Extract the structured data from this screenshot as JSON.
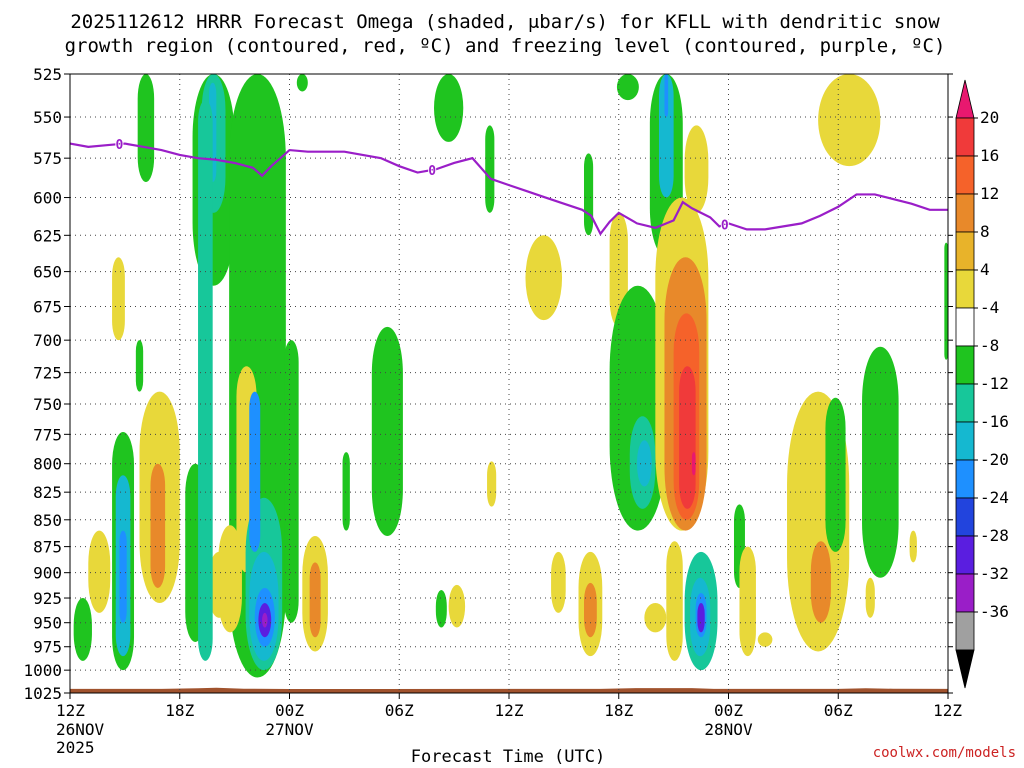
{
  "chart_data": {
    "type": "heatmap",
    "title_line1": "2025112612 HRRR Forecast Omega (shaded, μbar/s) for KFLL with dendritic snow",
    "title_line2": "growth region (contoured, red, ºC) and freezing level (contoured, purple, ºC)",
    "xlabel": "Forecast Time (UTC)",
    "ylabel": "",
    "credit": "coolwx.com/models",
    "x_hours_range": [
      0,
      48
    ],
    "y_range_hPa": [
      525,
      1025
    ],
    "y_ticks": [
      "525",
      "550",
      "575",
      "600",
      "625",
      "650",
      "675",
      "700",
      "725",
      "750",
      "775",
      "800",
      "825",
      "850",
      "875",
      "900",
      "925",
      "950",
      "975",
      "1000",
      "1025"
    ],
    "x_ticks": [
      {
        "hour": 0,
        "label": "12Z",
        "date": "26NOV",
        "year": "2025"
      },
      {
        "hour": 6,
        "label": "18Z",
        "date": "",
        "year": ""
      },
      {
        "hour": 12,
        "label": "00Z",
        "date": "27NOV",
        "year": ""
      },
      {
        "hour": 18,
        "label": "06Z",
        "date": "",
        "year": ""
      },
      {
        "hour": 24,
        "label": "12Z",
        "date": "",
        "year": ""
      },
      {
        "hour": 30,
        "label": "18Z",
        "date": "",
        "year": ""
      },
      {
        "hour": 36,
        "label": "00Z",
        "date": "28NOV",
        "year": ""
      },
      {
        "hour": 42,
        "label": "06Z",
        "date": "",
        "year": ""
      },
      {
        "hour": 48,
        "label": "12Z",
        "date": "",
        "year": ""
      }
    ],
    "colorbar": {
      "labels": [
        "20",
        "16",
        "12",
        "8",
        "4",
        "-4",
        "-8",
        "-12",
        "-16",
        "-20",
        "-24",
        "-28",
        "-32",
        "-36"
      ],
      "colors": [
        "#e8186f",
        "#f03a3a",
        "#f5622a",
        "#e8892a",
        "#e8b32a",
        "#e8d83a",
        "#ffffff",
        "#1fc41f",
        "#17c79a",
        "#15b8d0",
        "#1e90ff",
        "#2244dd",
        "#5a1ee0",
        "#9a1ec8",
        "#a0a0a0",
        "#000000"
      ]
    },
    "freezing_level": {
      "label": "0",
      "hours": [
        0,
        1,
        2,
        3,
        4,
        5,
        6,
        7,
        8,
        9,
        10,
        10.5,
        11,
        11.5,
        12,
        13,
        14,
        15,
        16,
        17,
        18,
        19,
        20,
        21,
        22,
        23,
        24,
        25,
        26,
        27,
        28,
        28.5,
        29,
        29.5,
        30,
        31,
        32,
        33,
        33.5,
        34,
        35,
        35.5,
        36,
        37,
        38,
        39,
        40,
        41,
        42,
        43,
        44,
        45,
        46,
        47,
        48
      ],
      "pressures": [
        566,
        568,
        567,
        566,
        568,
        570,
        573,
        575,
        576,
        578,
        581,
        586,
        580,
        575,
        570,
        571,
        571,
        571,
        573,
        575,
        580,
        584,
        582,
        578,
        575,
        588,
        592,
        596,
        600,
        604,
        608,
        612,
        624,
        616,
        610,
        617,
        620,
        615,
        603,
        607,
        613,
        619,
        617,
        621,
        621,
        619,
        617,
        612,
        606,
        598,
        598,
        601,
        604,
        608,
        608
      ],
      "label_hours": [
        2.7,
        19.8,
        35.8
      ]
    },
    "regions": [
      {
        "value": -6,
        "h": [
          3.7,
          4.6
        ],
        "p": [
          525,
          590
        ]
      },
      {
        "value": -6,
        "h": [
          6.7,
          9.0
        ],
        "p": [
          525,
          660
        ]
      },
      {
        "value": -10,
        "h": [
          7.2,
          8.5
        ],
        "p": [
          525,
          610
        ]
      },
      {
        "value": -14,
        "h": [
          7.6,
          8.0
        ],
        "p": [
          530,
          590
        ]
      },
      {
        "value": -6,
        "h": [
          8.7,
          11.8
        ],
        "p": [
          525,
          1008
        ]
      },
      {
        "value": -6,
        "h": [
          12.4,
          13.0
        ],
        "p": [
          525,
          535
        ]
      },
      {
        "value": -6,
        "h": [
          19.9,
          21.5
        ],
        "p": [
          525,
          565
        ]
      },
      {
        "value": -6,
        "h": [
          22.7,
          23.2
        ],
        "p": [
          555,
          610
        ]
      },
      {
        "value": -6,
        "h": [
          31.7,
          33.5
        ],
        "p": [
          525,
          640
        ]
      },
      {
        "value": -12,
        "h": [
          32.2,
          33.0
        ],
        "p": [
          525,
          600
        ]
      },
      {
        "value": -18,
        "h": [
          32.5,
          32.7
        ],
        "p": [
          525,
          550
        ]
      },
      {
        "value": -6,
        "h": [
          29.9,
          31.1
        ],
        "p": [
          525,
          540
        ]
      },
      {
        "value": 6,
        "h": [
          40.9,
          44.3
        ],
        "p": [
          525,
          580
        ]
      },
      {
        "value": 6,
        "h": [
          2.3,
          3.0
        ],
        "p": [
          640,
          700
        ]
      },
      {
        "value": -6,
        "h": [
          3.6,
          4.0
        ],
        "p": [
          700,
          740
        ]
      },
      {
        "value": -6,
        "h": [
          2.3,
          3.5
        ],
        "p": [
          773,
          1000
        ]
      },
      {
        "value": -12,
        "h": [
          2.5,
          3.3
        ],
        "p": [
          810,
          985
        ]
      },
      {
        "value": -16,
        "h": [
          2.7,
          3.1
        ],
        "p": [
          860,
          950
        ]
      },
      {
        "value": 6,
        "h": [
          1.0,
          2.2
        ],
        "p": [
          860,
          940
        ]
      },
      {
        "value": 6,
        "h": [
          3.8,
          6.0
        ],
        "p": [
          740,
          930
        ]
      },
      {
        "value": 10,
        "h": [
          4.4,
          5.2
        ],
        "p": [
          800,
          915
        ]
      },
      {
        "value": -6,
        "h": [
          0.2,
          1.2
        ],
        "p": [
          925,
          990
        ]
      },
      {
        "value": -6,
        "h": [
          6.3,
          7.4
        ],
        "p": [
          800,
          970
        ]
      },
      {
        "value": 6,
        "h": [
          7.5,
          8.8
        ],
        "p": [
          880,
          945
        ]
      },
      {
        "value": 6,
        "h": [
          9.1,
          10.2
        ],
        "p": [
          720,
          900
        ]
      },
      {
        "value": 6,
        "h": [
          8.1,
          9.4
        ],
        "p": [
          855,
          960
        ]
      },
      {
        "value": -10,
        "h": [
          9.6,
          11.6
        ],
        "p": [
          830,
          1000
        ]
      },
      {
        "value": -14,
        "h": [
          9.8,
          11.4
        ],
        "p": [
          880,
          990
        ]
      },
      {
        "value": -18,
        "h": [
          10.1,
          11.2
        ],
        "p": [
          915,
          975
        ]
      },
      {
        "value": -24,
        "h": [
          10.3,
          11.0
        ],
        "p": [
          930,
          965
        ]
      },
      {
        "value": -30,
        "h": [
          10.5,
          10.8
        ],
        "p": [
          940,
          955
        ]
      },
      {
        "value": -16,
        "h": [
          9.8,
          10.4
        ],
        "p": [
          740,
          880
        ]
      },
      {
        "value": -8,
        "h": [
          7.0,
          7.8
        ],
        "p": [
          540,
          990
        ]
      },
      {
        "value": -6,
        "h": [
          11.7,
          12.5
        ],
        "p": [
          700,
          950
        ]
      },
      {
        "value": 6,
        "h": [
          12.7,
          14.1
        ],
        "p": [
          865,
          980
        ]
      },
      {
        "value": 10,
        "h": [
          13.1,
          13.7
        ],
        "p": [
          890,
          965
        ]
      },
      {
        "value": -6,
        "h": [
          14.9,
          15.3
        ],
        "p": [
          790,
          860
        ]
      },
      {
        "value": -6,
        "h": [
          16.5,
          18.2
        ],
        "p": [
          690,
          865
        ]
      },
      {
        "value": -6,
        "h": [
          20.0,
          20.6
        ],
        "p": [
          917,
          955
        ]
      },
      {
        "value": 6,
        "h": [
          20.7,
          21.6
        ],
        "p": [
          912,
          955
        ]
      },
      {
        "value": 6,
        "h": [
          24.9,
          26.9
        ],
        "p": [
          625,
          685
        ]
      },
      {
        "value": 6,
        "h": [
          22.8,
          23.3
        ],
        "p": [
          798,
          838
        ]
      },
      {
        "value": 6,
        "h": [
          26.3,
          27.1
        ],
        "p": [
          880,
          940
        ]
      },
      {
        "value": 6,
        "h": [
          27.8,
          29.1
        ],
        "p": [
          880,
          985
        ]
      },
      {
        "value": 10,
        "h": [
          28.1,
          28.8
        ],
        "p": [
          910,
          965
        ]
      },
      {
        "value": 6,
        "h": [
          29.5,
          30.5
        ],
        "p": [
          610,
          690
        ]
      },
      {
        "value": -6,
        "h": [
          28.1,
          28.6
        ],
        "p": [
          572,
          625
        ]
      },
      {
        "value": -6,
        "h": [
          29.5,
          32.6
        ],
        "p": [
          660,
          860
        ]
      },
      {
        "value": -10,
        "h": [
          30.6,
          32.0
        ],
        "p": [
          760,
          840
        ]
      },
      {
        "value": -12,
        "h": [
          31.0,
          31.8
        ],
        "p": [
          780,
          820
        ]
      },
      {
        "value": 6,
        "h": [
          31.4,
          32.6
        ],
        "p": [
          930,
          960
        ]
      },
      {
        "value": 6,
        "h": [
          32.0,
          34.9
        ],
        "p": [
          600,
          860
        ]
      },
      {
        "value": 10,
        "h": [
          32.5,
          34.8
        ],
        "p": [
          640,
          860
        ]
      },
      {
        "value": 14,
        "h": [
          33.0,
          34.4
        ],
        "p": [
          680,
          850
        ]
      },
      {
        "value": 18,
        "h": [
          33.3,
          34.2
        ],
        "p": [
          720,
          840
        ]
      },
      {
        "value": 20,
        "h": [
          34.0,
          34.2
        ],
        "p": [
          790,
          810
        ]
      },
      {
        "value": 6,
        "h": [
          33.6,
          34.9
        ],
        "p": [
          555,
          610
        ]
      },
      {
        "value": 6,
        "h": [
          32.6,
          33.5
        ],
        "p": [
          870,
          990
        ]
      },
      {
        "value": -8,
        "h": [
          33.6,
          35.4
        ],
        "p": [
          880,
          1000
        ]
      },
      {
        "value": -12,
        "h": [
          33.9,
          35.0
        ],
        "p": [
          905,
          985
        ]
      },
      {
        "value": -18,
        "h": [
          34.2,
          34.8
        ],
        "p": [
          920,
          965
        ]
      },
      {
        "value": -26,
        "h": [
          34.3,
          34.7
        ],
        "p": [
          930,
          960
        ]
      },
      {
        "value": -6,
        "h": [
          36.3,
          36.9
        ],
        "p": [
          836,
          915
        ]
      },
      {
        "value": 6,
        "h": [
          36.6,
          37.5
        ],
        "p": [
          875,
          985
        ]
      },
      {
        "value": 6,
        "h": [
          37.6,
          38.4
        ],
        "p": [
          960,
          975
        ]
      },
      {
        "value": 6,
        "h": [
          39.2,
          42.6
        ],
        "p": [
          740,
          980
        ]
      },
      {
        "value": 10,
        "h": [
          40.5,
          41.6
        ],
        "p": [
          870,
          950
        ]
      },
      {
        "value": -6,
        "h": [
          41.3,
          42.4
        ],
        "p": [
          745,
          880
        ]
      },
      {
        "value": -6,
        "h": [
          43.3,
          45.3
        ],
        "p": [
          705,
          905
        ]
      },
      {
        "value": 6,
        "h": [
          43.5,
          44.0
        ],
        "p": [
          905,
          945
        ]
      },
      {
        "value": 6,
        "h": [
          45.9,
          46.3
        ],
        "p": [
          860,
          890
        ]
      },
      {
        "value": -6,
        "h": [
          47.8,
          48.0
        ],
        "p": [
          630,
          715
        ]
      }
    ]
  }
}
